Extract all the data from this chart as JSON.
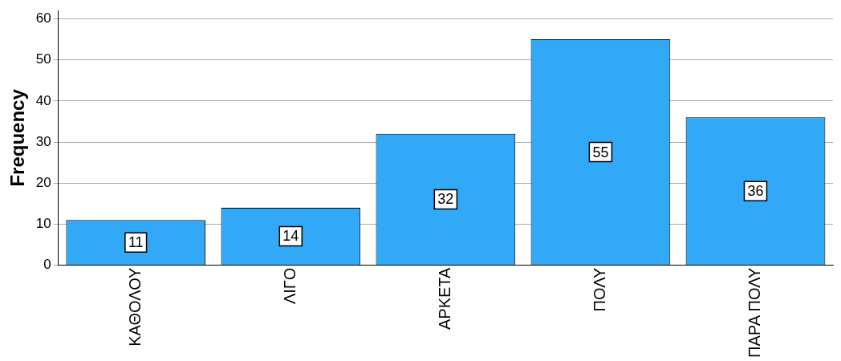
{
  "chart_data": {
    "type": "bar",
    "ylabel": "Frequency",
    "categories": [
      "ΚΑΘΟΛΟΥ",
      "ΛΙΓΟ",
      "ΑΡΚΕΤΑ",
      "ΠΟΛΥ",
      "ΠΑΡΑ ΠΟΛΥ"
    ],
    "values": [
      11,
      14,
      32,
      55,
      36
    ],
    "color": "#31a9f7",
    "ylim": [
      0,
      62
    ],
    "yticks": [
      0,
      10,
      20,
      30,
      40,
      50,
      60
    ],
    "grid": "y",
    "data_labels": true,
    "legend": false
  }
}
